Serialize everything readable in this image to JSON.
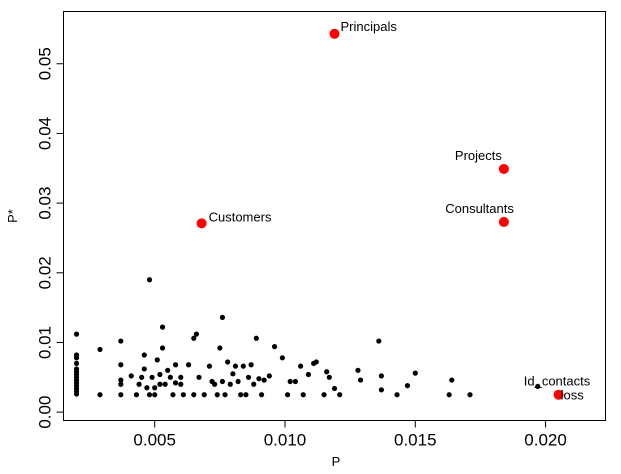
{
  "chart_data": {
    "type": "scatter",
    "xlabel": "P",
    "ylabel": "P*",
    "xlim": [
      0.0015,
      0.0223
    ],
    "ylim": [
      -0.0012,
      0.0575
    ],
    "xticks": [
      0.005,
      0.01,
      0.015,
      0.02
    ],
    "xtick_labels": [
      "0.005",
      "0.010",
      "0.015",
      "0.020"
    ],
    "yticks": [
      0.0,
      0.01,
      0.02,
      0.03,
      0.04,
      0.05
    ],
    "ytick_labels": [
      "0.00",
      "0.01",
      "0.02",
      "0.03",
      "0.04",
      "0.05"
    ],
    "grid": false,
    "colors": {
      "point": "#000000",
      "highlight": "#ff0000"
    },
    "highlighted": [
      {
        "label": "Principals",
        "x": 0.0119,
        "y": 0.0543
      },
      {
        "label": "Projects",
        "x": 0.0184,
        "y": 0.0349
      },
      {
        "label": "Consultants",
        "x": 0.0184,
        "y": 0.0273
      },
      {
        "label": "Customers",
        "x": 0.0068,
        "y": 0.0271
      },
      {
        "label": "loss",
        "x": 0.0205,
        "y": 0.0025
      }
    ],
    "labeled_points": [
      {
        "label": "Id_contacts",
        "x": 0.0197,
        "y": 0.0037
      }
    ],
    "points": [
      [
        0.002,
        0.0112
      ],
      [
        0.002,
        0.0082
      ],
      [
        0.002,
        0.0078
      ],
      [
        0.002,
        0.007
      ],
      [
        0.002,
        0.0062
      ],
      [
        0.002,
        0.0058
      ],
      [
        0.002,
        0.0054
      ],
      [
        0.002,
        0.005
      ],
      [
        0.002,
        0.0046
      ],
      [
        0.002,
        0.0042
      ],
      [
        0.002,
        0.0038
      ],
      [
        0.002,
        0.0034
      ],
      [
        0.002,
        0.003
      ],
      [
        0.002,
        0.0026
      ],
      [
        0.0029,
        0.009
      ],
      [
        0.0029,
        0.0025
      ],
      [
        0.0037,
        0.0102
      ],
      [
        0.0037,
        0.0068
      ],
      [
        0.0037,
        0.0046
      ],
      [
        0.0037,
        0.004
      ],
      [
        0.0037,
        0.0025
      ],
      [
        0.0041,
        0.0052
      ],
      [
        0.0043,
        0.0025
      ],
      [
        0.0044,
        0.004
      ],
      [
        0.0045,
        0.005
      ],
      [
        0.0046,
        0.0082
      ],
      [
        0.0046,
        0.0062
      ],
      [
        0.0047,
        0.0035
      ],
      [
        0.0048,
        0.019
      ],
      [
        0.0048,
        0.0025
      ],
      [
        0.0049,
        0.005
      ],
      [
        0.005,
        0.0035
      ],
      [
        0.005,
        0.0025
      ],
      [
        0.0051,
        0.0075
      ],
      [
        0.0052,
        0.004
      ],
      [
        0.0052,
        0.0054
      ],
      [
        0.0053,
        0.0092
      ],
      [
        0.0053,
        0.0122
      ],
      [
        0.0054,
        0.004
      ],
      [
        0.0055,
        0.006
      ],
      [
        0.0056,
        0.005
      ],
      [
        0.0057,
        0.0025
      ],
      [
        0.0058,
        0.0068
      ],
      [
        0.0058,
        0.0042
      ],
      [
        0.006,
        0.005
      ],
      [
        0.006,
        0.004
      ],
      [
        0.0061,
        0.0025
      ],
      [
        0.0063,
        0.0068
      ],
      [
        0.0065,
        0.0106
      ],
      [
        0.0065,
        0.0025
      ],
      [
        0.0066,
        0.0112
      ],
      [
        0.0067,
        0.005
      ],
      [
        0.0069,
        0.0025
      ],
      [
        0.0071,
        0.0066
      ],
      [
        0.0072,
        0.0044
      ],
      [
        0.0073,
        0.004
      ],
      [
        0.0074,
        0.0025
      ],
      [
        0.0075,
        0.0092
      ],
      [
        0.0076,
        0.0136
      ],
      [
        0.0076,
        0.0044
      ],
      [
        0.0077,
        0.0025
      ],
      [
        0.0078,
        0.0072
      ],
      [
        0.0079,
        0.004
      ],
      [
        0.008,
        0.0055
      ],
      [
        0.0081,
        0.0066
      ],
      [
        0.0082,
        0.0044
      ],
      [
        0.0083,
        0.0025
      ],
      [
        0.0084,
        0.0066
      ],
      [
        0.0085,
        0.0025
      ],
      [
        0.0086,
        0.005
      ],
      [
        0.0087,
        0.0068
      ],
      [
        0.0088,
        0.004
      ],
      [
        0.0089,
        0.0106
      ],
      [
        0.009,
        0.0048
      ],
      [
        0.0091,
        0.0025
      ],
      [
        0.0092,
        0.0046
      ],
      [
        0.0094,
        0.0052
      ],
      [
        0.0096,
        0.0094
      ],
      [
        0.0099,
        0.0078
      ],
      [
        0.0101,
        0.0025
      ],
      [
        0.0102,
        0.0044
      ],
      [
        0.0104,
        0.0044
      ],
      [
        0.0106,
        0.0066
      ],
      [
        0.0107,
        0.0025
      ],
      [
        0.0109,
        0.0054
      ],
      [
        0.0111,
        0.007
      ],
      [
        0.0112,
        0.0072
      ],
      [
        0.0115,
        0.0025
      ],
      [
        0.0116,
        0.0058
      ],
      [
        0.0117,
        0.005
      ],
      [
        0.0119,
        0.0034
      ],
      [
        0.0121,
        0.0025
      ],
      [
        0.0128,
        0.006
      ],
      [
        0.0129,
        0.0046
      ],
      [
        0.0136,
        0.0102
      ],
      [
        0.0137,
        0.0052
      ],
      [
        0.0137,
        0.0032
      ],
      [
        0.0143,
        0.0025
      ],
      [
        0.0147,
        0.0038
      ],
      [
        0.015,
        0.0056
      ],
      [
        0.0163,
        0.0025
      ],
      [
        0.0164,
        0.0046
      ],
      [
        0.0171,
        0.0025
      ]
    ]
  }
}
